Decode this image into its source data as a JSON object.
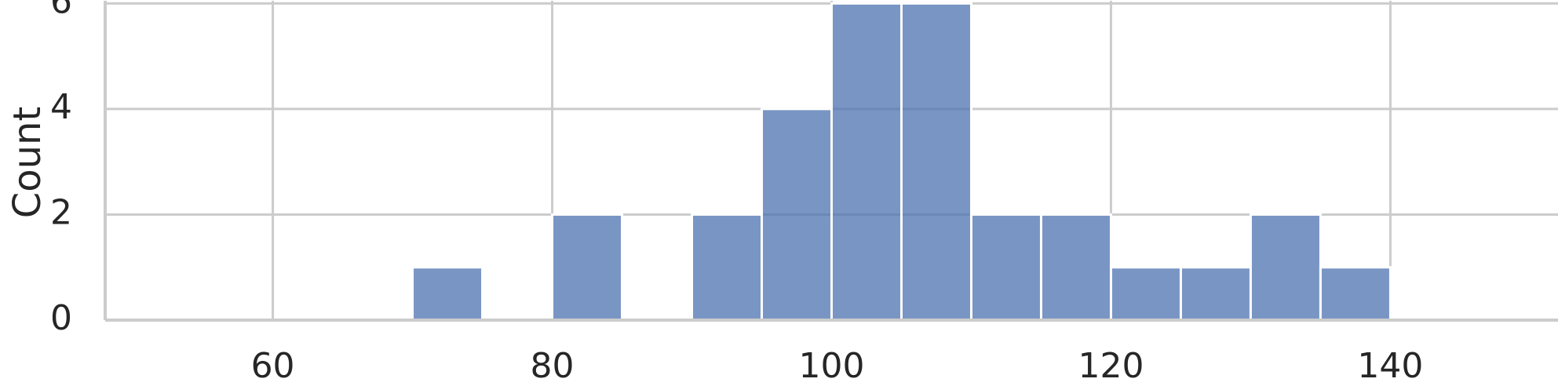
{
  "chart_data": {
    "type": "bar",
    "subtype": "histogram",
    "title": "",
    "xlabel": "",
    "ylabel": "Count",
    "bin_width": 5,
    "bins": [
      {
        "x0": 70,
        "x1": 75,
        "count": 1
      },
      {
        "x0": 75,
        "x1": 80,
        "count": 0
      },
      {
        "x0": 80,
        "x1": 85,
        "count": 2
      },
      {
        "x0": 85,
        "x1": 90,
        "count": 0
      },
      {
        "x0": 90,
        "x1": 95,
        "count": 2
      },
      {
        "x0": 95,
        "x1": 100,
        "count": 4
      },
      {
        "x0": 100,
        "x1": 105,
        "count": 6
      },
      {
        "x0": 105,
        "x1": 110,
        "count": 6
      },
      {
        "x0": 110,
        "x1": 115,
        "count": 2
      },
      {
        "x0": 115,
        "x1": 120,
        "count": 2
      },
      {
        "x0": 120,
        "x1": 125,
        "count": 1
      },
      {
        "x0": 125,
        "x1": 130,
        "count": 1
      },
      {
        "x0": 130,
        "x1": 135,
        "count": 2
      },
      {
        "x0": 135,
        "x1": 140,
        "count": 1
      }
    ],
    "xlim": [
      48,
      152
    ],
    "ylim": [
      0,
      6.05
    ],
    "xticks": [
      60,
      80,
      100,
      120,
      140
    ],
    "yticks": [
      0,
      2,
      4,
      6
    ],
    "grid": true,
    "legend": "none",
    "colors": {
      "bar": "#4c72b0",
      "bar_opacity": 0.75,
      "grid": "#cccccc",
      "axis": "#cccccc",
      "text": "#262626"
    }
  }
}
